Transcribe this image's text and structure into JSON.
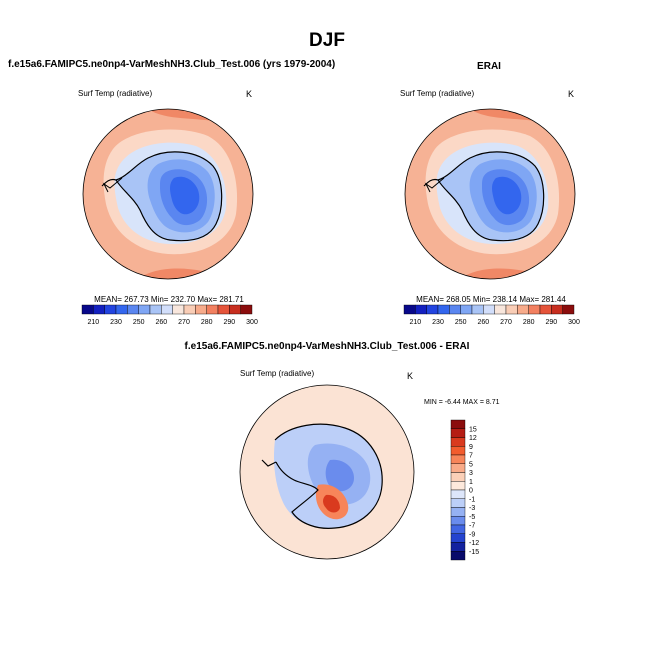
{
  "title": "DJF",
  "panels": [
    {
      "title": "f.e15a6.FAMIPC5.ne0np4-VarMeshNH3.Club_Test.006 (yrs 1979-2004)",
      "variable": "Surf Temp (radiative)",
      "unit": "K",
      "stats": "MEAN= 267.73  Min= 232.70  Max= 281.71"
    },
    {
      "title": "ERAI",
      "variable": "Surf Temp (radiative)",
      "unit": "K",
      "stats": "MEAN= 268.05  Min= 238.14  Max= 281.44"
    },
    {
      "title": "f.e15a6.FAMIPC5.ne0np4-VarMeshNH3.Club_Test.006 - ERAI",
      "variable": "Surf Temp (radiative)",
      "unit": "K",
      "stats": "MIN =  -6.44 MAX =   8.71"
    }
  ],
  "colorbar_abs": {
    "colors": [
      "#08088a",
      "#1320c0",
      "#2244e0",
      "#3366ee",
      "#5a86f0",
      "#7fa6f4",
      "#a9c4f6",
      "#d2defa",
      "#f8e6dc",
      "#f9cdb6",
      "#f7ab8b",
      "#f28060",
      "#e5543a",
      "#c72e1f",
      "#8b0d0d"
    ],
    "labels": [
      "210",
      "230",
      "250",
      "260",
      "270",
      "280",
      "290",
      "300"
    ]
  },
  "colorbar_diff": {
    "colors": [
      "#8b0d0d",
      "#b51d14",
      "#d93a1e",
      "#f25c2e",
      "#f7855a",
      "#f9ab89",
      "#fbd0b8",
      "#fde9dc",
      "#dde6fa",
      "#bccff8",
      "#95b1f3",
      "#6a8ced",
      "#4266e3",
      "#2443cf",
      "#13229f",
      "#080a6a"
    ],
    "labels": [
      "15",
      "12",
      "9",
      "7",
      "5",
      "3",
      "1",
      "0",
      "-1",
      "-3",
      "-5",
      "-7",
      "-9",
      "-12",
      "-15"
    ]
  },
  "field_colors": {
    "ocean_abs": "#f6b295",
    "ocean_abs_warm": "#f08866",
    "ocean_abs_cool": "#fbd8c6",
    "ice_edge": "#d8e4fa",
    "land_1": "#a9c4f6",
    "land_2": "#7fa6f4",
    "land_3": "#5a86f0",
    "land_4": "#3366ee",
    "diff_ocean": "#fbe3d4",
    "diff_neg_1": "#bccff8",
    "diff_neg_2": "#95b1f3",
    "diff_neg_3": "#6a8ced",
    "diff_pos_1": "#f7855a",
    "diff_pos_2": "#d93a1e"
  }
}
